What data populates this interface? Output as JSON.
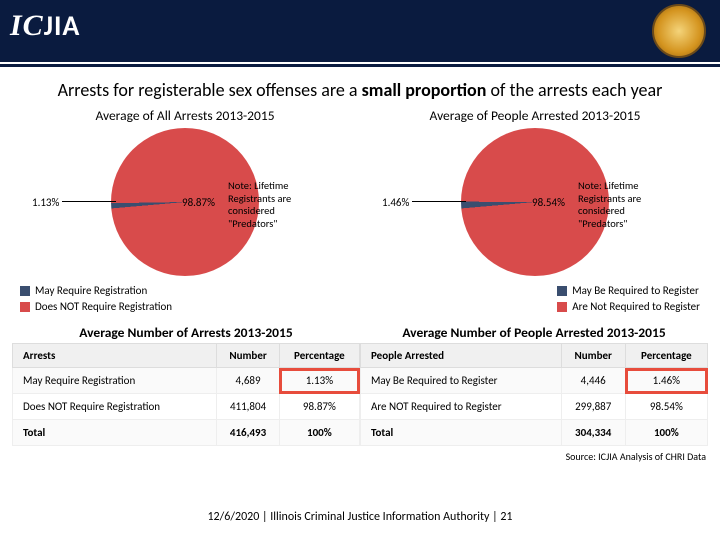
{
  "header": {
    "logo": "ICJIA"
  },
  "title_pre": "Arrests for registerable sex offenses are a ",
  "title_bold": "small proportion",
  "title_post": " of the arrests each year",
  "left": {
    "type": "pie",
    "title": "Average of All Arrests 2013-2015",
    "slices": [
      {
        "label": "1.13%",
        "value": 1.13,
        "color": "#3a4e6f"
      },
      {
        "label": "98.87%",
        "value": 98.87,
        "color": "#d84b4b"
      }
    ],
    "note": "Note: Lifetime Registrants are considered \"Predators\"",
    "legend": [
      {
        "color": "#3a4e6f",
        "text": "May Require Registration"
      },
      {
        "color": "#d84b4b",
        "text": "Does NOT Require Registration"
      }
    ],
    "table_title": "Average Number of Arrests 2013-2015",
    "cols": [
      "Arrests",
      "Number",
      "Percentage"
    ],
    "rows": [
      [
        "May Require Registration",
        "4,689",
        "1.13%"
      ],
      [
        "Does NOT Require Registration",
        "411,804",
        "98.87%"
      ],
      [
        "Total",
        "416,493",
        "100%"
      ]
    ],
    "highlight_cell": [
      0,
      2
    ]
  },
  "right": {
    "type": "pie",
    "title": "Average of People Arrested 2013-2015",
    "slices": [
      {
        "label": "1.46%",
        "value": 1.46,
        "color": "#3a4e6f"
      },
      {
        "label": "98.54%",
        "value": 98.54,
        "color": "#d84b4b"
      }
    ],
    "note": "Note: Lifetime Registrants are considered \"Predators\"",
    "legend": [
      {
        "color": "#3a4e6f",
        "text": "May Be Required to Register"
      },
      {
        "color": "#d84b4b",
        "text": "Are Not Required to Register"
      }
    ],
    "table_title": "Average Number of People Arrested 2013-2015",
    "cols": [
      "People Arrested",
      "Number",
      "Percentage"
    ],
    "rows": [
      [
        "May Be Required to Register",
        "4,446",
        "1.46%"
      ],
      [
        "Are NOT Required to Register",
        "299,887",
        "98.54%"
      ],
      [
        "Total",
        "304,334",
        "100%"
      ]
    ],
    "highlight_cell": [
      0,
      2
    ]
  },
  "source": "Source: ICJIA Analysis of CHRI Data",
  "footer": "12/6/2020 | Illinois Criminal Justice Information Authority | 21",
  "colors": {
    "header_bg": "#0a1b3f",
    "slice_minor": "#3a4e6f",
    "slice_major": "#d84b4b",
    "highlight": "#e74c3c"
  }
}
